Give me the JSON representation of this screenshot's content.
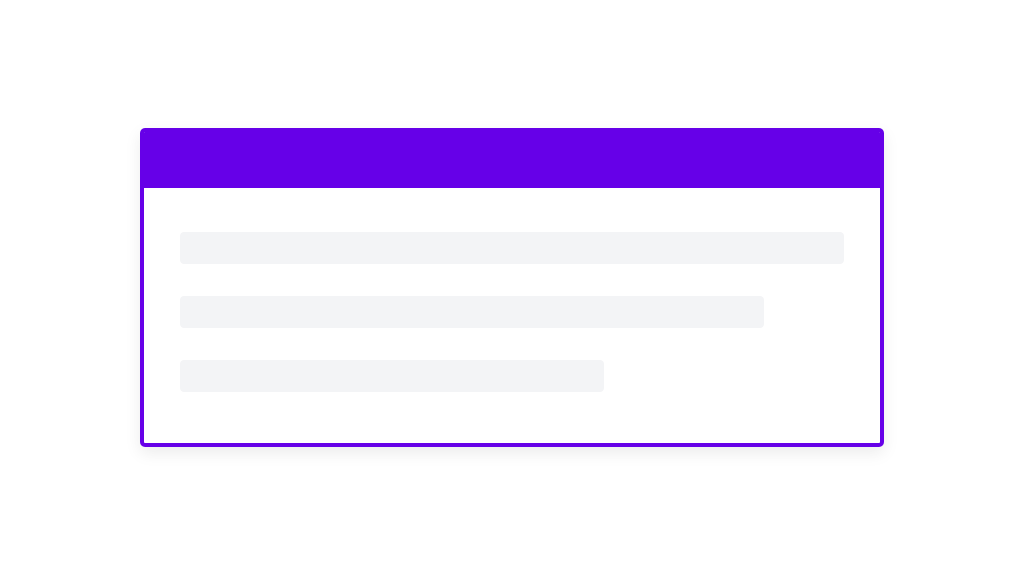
{
  "card": {
    "accent_color": "#6600e8",
    "skeleton_color": "#f3f4f6",
    "skeleton_lines": [
      {
        "name": "skeleton-line-1",
        "width_percent": 100
      },
      {
        "name": "skeleton-line-2",
        "width_percent": 88
      },
      {
        "name": "skeleton-line-3",
        "width_percent": 64
      }
    ]
  }
}
